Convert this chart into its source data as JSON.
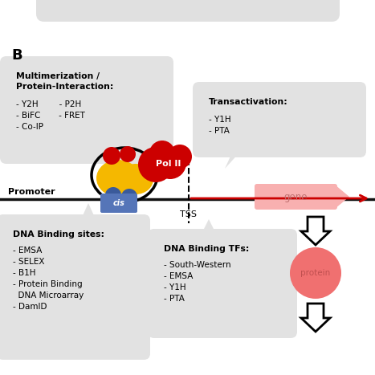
{
  "bg_color": "#ffffff",
  "label_B": "B",
  "box1_title": "Multimerization /\nProtein-Interaction:",
  "box1_line1": "- Y2H        - P2H",
  "box1_line2": "- BiFC       - FRET",
  "box1_line3": "- Co-IP",
  "box2_title": "Transactivation:",
  "box2_line1": "- Y1H",
  "box2_line2": "- PTA",
  "box3_title": "DNA Binding sites:",
  "box3_items": "- EMSA\n- SELEX\n- B1H\n- Protein Binding\n  DNA Microarray\n- DamID",
  "box4_title": "DNA Binding TFs:",
  "box4_items": "- South-Western\n- EMSA\n- Y1H\n- PTA",
  "pol2_label": "Pol II",
  "promoter_label": "Promoter",
  "cis_label": "cis",
  "tss_label": "TSS",
  "gene_label": "gene",
  "protein_label": "protein",
  "box_bg": "#e2e2e2",
  "dna_color": "#111111",
  "pol2_color": "#cc0000",
  "yellow_color": "#f5b800",
  "blue_color": "#3a5a9a",
  "red_small_color": "#cc0000",
  "gene_color": "#f8b0b0",
  "gene_text_color": "#c07070",
  "protein_color": "#f07070",
  "protein_text_color": "#c05050",
  "cis_box_color": "#5575b8",
  "arrow_red_color": "#cc0000",
  "connector_color": "#bbbbbb",
  "top_box_color": "#e0e0e0"
}
